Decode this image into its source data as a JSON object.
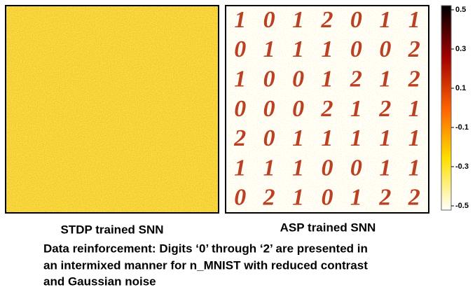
{
  "panels": [
    {
      "label": "STDP trained SNN"
    },
    {
      "label": "ASP trained SNN",
      "digits": [
        [
          "1",
          "0",
          "1",
          "2",
          "0",
          "1",
          "1"
        ],
        [
          "0",
          "1",
          "1",
          "1",
          "0",
          "0",
          "2"
        ],
        [
          "1",
          "0",
          "0",
          "1",
          "2",
          "1",
          "2"
        ],
        [
          "0",
          "0",
          "0",
          "2",
          "1",
          "2",
          "1"
        ],
        [
          "2",
          "0",
          "1",
          "1",
          "1",
          "1",
          "1"
        ],
        [
          "1",
          "1",
          "1",
          "0",
          "0",
          "1",
          "1"
        ],
        [
          "0",
          "2",
          "1",
          "0",
          "1",
          "2",
          "2"
        ]
      ]
    }
  ],
  "colorbar": {
    "ticks": [
      0.5,
      0.3,
      0.1,
      -0.1,
      -0.3,
      -0.5
    ],
    "range": [
      -0.5,
      0.5
    ]
  },
  "caption": [
    "Data reinforcement: Digits ‘0’ through ‘2’ are presented in",
    "an intermixed manner for n_MNIST with reduced contrast",
    "and Gaussian noise"
  ]
}
